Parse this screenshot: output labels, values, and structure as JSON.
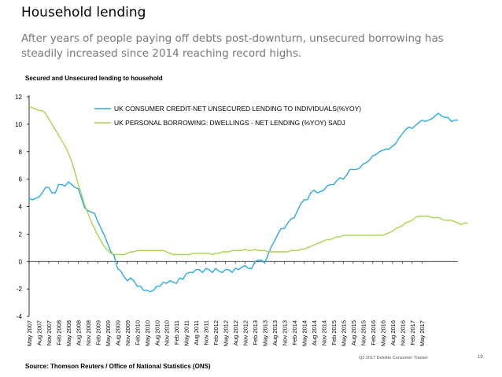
{
  "header": {
    "title": "Household lending",
    "subtitle": "After years of people paying off debts post-downturn, unsecured borrowing has steadily increased since 2014 reaching record highs."
  },
  "footer": {
    "source": "Source: Thomson Reuters / Office of National Statistics (ONS)",
    "brand": "Q2 2017 Deloitte Consumer Tracker",
    "page": "19"
  },
  "chart_data": {
    "type": "line",
    "title": "Secured and Unsecured lending to household",
    "xlabel": "",
    "ylabel": "",
    "ylim": [
      -4,
      12
    ],
    "yticks": [
      -4,
      -2,
      0,
      2,
      4,
      6,
      8,
      10,
      12
    ],
    "x_start": "May 2007",
    "x_end": "May 2017",
    "xticks": [
      "May 2007",
      "Aug 2007",
      "Nov 2007",
      "Feb 2008",
      "May 2008",
      "Aug 2008",
      "Nov 2008",
      "Feb 2009",
      "May 2009",
      "Aug 2009",
      "Nov 2009",
      "Feb 2010",
      "May 2010",
      "Aug 2010",
      "Nov 2010",
      "Feb 2011",
      "May 2011",
      "Aug 2011",
      "Nov 2011",
      "Feb 2012",
      "May 2012",
      "Aug 2012",
      "Nov 2012",
      "Feb 2013",
      "May 2013",
      "Aug 2013",
      "Nov 2013",
      "Feb 2014",
      "May 2014",
      "Aug 2014",
      "Nov 2014",
      "Feb 2015",
      "May 2015",
      "Aug 2015",
      "Nov 2015",
      "Feb 2016",
      "May 2016",
      "Aug 2016",
      "Nov 2016",
      "Feb 2017",
      "May 2017"
    ],
    "legend_position": "top",
    "series": [
      {
        "name": "UK CONSUMER CREDIT-NET UNSECURED LENDING TO INDIVIDUALS(%YOY)",
        "color": "#29abe2",
        "values": [
          4.6,
          4.5,
          4.6,
          4.7,
          5.0,
          5.4,
          5.4,
          5.0,
          5.0,
          5.6,
          5.6,
          5.5,
          5.8,
          5.6,
          5.4,
          5.3,
          4.6,
          3.9,
          3.7,
          3.6,
          3.5,
          2.9,
          2.4,
          1.9,
          1.3,
          0.7,
          0.4,
          -0.5,
          -0.7,
          -1.1,
          -1.4,
          -1.2,
          -1.4,
          -1.8,
          -1.8,
          -2.1,
          -2.1,
          -2.2,
          -2.1,
          -1.8,
          -1.8,
          -1.5,
          -1.6,
          -1.4,
          -1.5,
          -1.6,
          -1.2,
          -1.3,
          -0.9,
          -0.8,
          -0.8,
          -0.6,
          -0.6,
          -0.8,
          -0.5,
          -0.6,
          -0.8,
          -0.5,
          -0.7,
          -0.8,
          -0.6,
          -0.6,
          -0.8,
          -0.5,
          -0.6,
          -0.4,
          -0.3,
          -0.5,
          -0.5,
          0.0,
          0.1,
          0.1,
          -0.1,
          0.5,
          1.1,
          1.5,
          2.0,
          2.4,
          2.4,
          2.8,
          3.1,
          3.2,
          3.7,
          4.2,
          4.5,
          4.5,
          5.0,
          5.2,
          5.0,
          5.1,
          5.2,
          5.5,
          5.6,
          5.6,
          5.9,
          6.1,
          6.0,
          6.3,
          6.7,
          6.7,
          6.7,
          6.8,
          7.1,
          7.2,
          7.4,
          7.7,
          7.8,
          8.0,
          8.1,
          8.2,
          8.2,
          8.4,
          8.6,
          9.0,
          9.3,
          9.6,
          9.8,
          9.7,
          9.9,
          10.1,
          10.3,
          10.2,
          10.3,
          10.4,
          10.6,
          10.8,
          10.6,
          10.5,
          10.5,
          10.2,
          10.3,
          10.3
        ]
      },
      {
        "name": "UK PERSONAL BORROWING: DWELLINGS - NET LENDING (%YOY) SADJ",
        "color": "#a8d44e",
        "values": [
          11.3,
          11.2,
          11.1,
          11.0,
          11.0,
          10.8,
          10.4,
          10.0,
          9.6,
          9.2,
          8.8,
          8.4,
          7.9,
          7.3,
          6.5,
          5.6,
          4.9,
          4.1,
          3.5,
          2.9,
          2.4,
          1.9,
          1.5,
          1.1,
          0.8,
          0.6,
          0.5,
          0.5,
          0.5,
          0.5,
          0.6,
          0.7,
          0.7,
          0.8,
          0.8,
          0.8,
          0.8,
          0.8,
          0.8,
          0.8,
          0.8,
          0.8,
          0.7,
          0.6,
          0.5,
          0.5,
          0.5,
          0.5,
          0.5,
          0.5,
          0.6,
          0.6,
          0.6,
          0.6,
          0.6,
          0.6,
          0.5,
          0.6,
          0.6,
          0.7,
          0.7,
          0.7,
          0.8,
          0.8,
          0.8,
          0.8,
          0.9,
          0.8,
          0.8,
          0.9,
          0.8,
          0.8,
          0.8,
          0.7,
          0.7,
          0.7,
          0.7,
          0.7,
          0.7,
          0.7,
          0.8,
          0.8,
          0.8,
          0.9,
          0.9,
          1.0,
          1.1,
          1.2,
          1.3,
          1.4,
          1.5,
          1.6,
          1.6,
          1.7,
          1.8,
          1.8,
          1.9,
          1.9,
          1.9,
          1.9,
          1.9,
          1.9,
          1.9,
          1.9,
          1.9,
          1.9,
          1.9,
          1.9,
          1.9,
          2.0,
          2.1,
          2.2,
          2.4,
          2.5,
          2.6,
          2.8,
          2.9,
          3.0,
          3.2,
          3.3,
          3.3,
          3.3,
          3.3,
          3.2,
          3.2,
          3.2,
          3.1,
          3.0,
          3.0,
          3.0,
          2.9,
          2.8,
          2.7,
          2.8,
          2.8
        ]
      }
    ]
  }
}
